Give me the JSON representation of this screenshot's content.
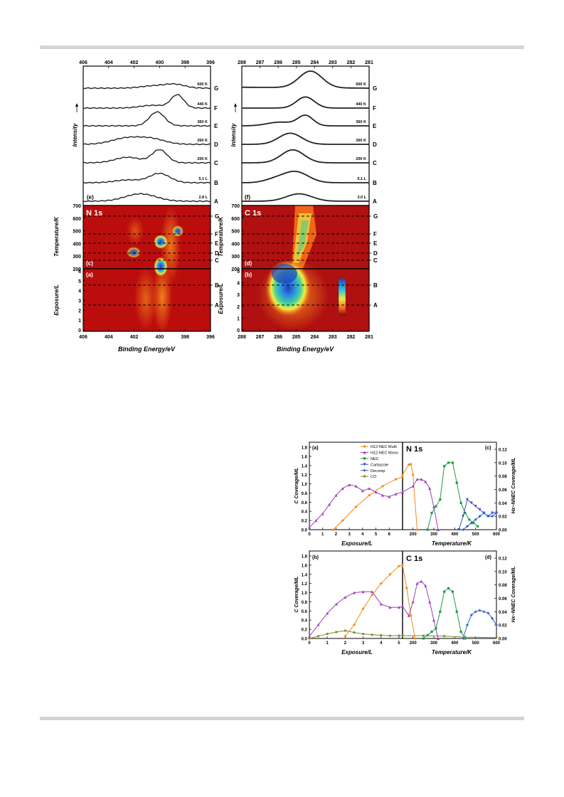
{
  "figure_top": {
    "top_axis_n": [
      "406",
      "404",
      "402",
      "400",
      "398",
      "396"
    ],
    "top_axis_c": [
      "288",
      "287",
      "286",
      "285",
      "284",
      "283",
      "282",
      "281"
    ],
    "bottom_axis_n": [
      "406",
      "404",
      "402",
      "400",
      "398",
      "396"
    ],
    "bottom_axis_c": [
      "288",
      "287",
      "286",
      "285",
      "284",
      "283",
      "282",
      "281"
    ],
    "panel_e": "(e)",
    "panel_f": "(f)",
    "panel_c": "(c)",
    "panel_a": "(a)",
    "panel_d": "(d)",
    "panel_b": "(b)",
    "intensity_label": "Intensity",
    "temperature_label": "Temperature/K",
    "exposure_label": "Exposure/L",
    "binding_label": "Binding Energy/eV",
    "n_title": "N 1s",
    "c_title": "C 1s",
    "n_spectra_labels": [
      "600 K",
      "440 K",
      "360 K",
      "260 K",
      "200 K",
      "5.1 L",
      "2.8 L"
    ],
    "c_spectra_labels": [
      "600 K",
      "440 K",
      "360 K",
      "260 K",
      "200 K",
      "5.1 L",
      "3.0 L"
    ],
    "letters": [
      "G",
      "F",
      "E",
      "D",
      "C",
      "B",
      "A"
    ],
    "temp_ticks": [
      "700",
      "600",
      "500",
      "400",
      "300",
      "200"
    ],
    "n_exp_ticks": [
      "6",
      "5",
      "4",
      "3",
      "2",
      "1",
      "0"
    ],
    "c_exp_ticks": [
      "5",
      "4",
      "3",
      "2",
      "1",
      "0"
    ]
  },
  "figure_bottom": {
    "panel_a": "(a)",
    "panel_b": "(b)",
    "panel_c": "(c)",
    "panel_d": "(d)",
    "n_title": "N 1s",
    "c_title": "C 1s",
    "left_ylabel": "C Coverage/ML",
    "right_ylabel": "Hx−NNEC Coverage/ML",
    "exposure_label": "Exposure/L",
    "temperature_label": "Temperature/K",
    "left_ticks": [
      "1.8",
      "1.6",
      "1.4",
      "1.2",
      "1.0",
      "0.8",
      "0.6",
      "0.4",
      "0.2",
      "0.0"
    ],
    "right_ticks": [
      "0.12",
      "0.10",
      "0.08",
      "0.06",
      "0.04",
      "0.02",
      "0.00"
    ],
    "exp_ticks_a": [
      "0",
      "1",
      "2",
      "3",
      "4",
      "5",
      "6"
    ],
    "exp_ticks_b": [
      "0",
      "1",
      "2",
      "3",
      "4",
      "5"
    ],
    "temp_ticks": [
      "200",
      "300",
      "400",
      "500",
      "600"
    ],
    "legend": [
      {
        "name": "H12-NEC Multi",
        "color": "#f28a1c",
        "marker": "circle"
      },
      {
        "name": "H12-NEC Mono",
        "color": "#9b3fc0",
        "marker": "triangle-up"
      },
      {
        "name": "NEC",
        "color": "#1e9a48",
        "marker": "square"
      },
      {
        "name": "Carbazole",
        "color": "#3f4fc8",
        "marker": "triangle-down"
      },
      {
        "name": "Decomp",
        "color": "#2f62c4",
        "marker": "diamond"
      },
      {
        "name": "CO",
        "color": "#7d8a2a",
        "marker": "circle"
      }
    ]
  },
  "chart_data": [
    {
      "type": "line",
      "title": "N 1s",
      "xlabel": "Exposure/L | Temperature/K",
      "ylabel": "C Coverage/ML",
      "y2label": "Hx−NNEC Coverage/ML",
      "exposure_range": [
        0,
        7
      ],
      "temperature_range": [
        150,
        600
      ],
      "ylim": [
        0,
        1.8
      ],
      "y2lim": [
        0,
        0.12
      ],
      "series": [
        {
          "name": "H12-NEC Multi",
          "axis": "left",
          "exposure": [
            1.8,
            2.5,
            3.5,
            4.5,
            5.5,
            6.5,
            7
          ],
          "exposure_values": [
            0.0,
            0.2,
            0.5,
            0.75,
            0.95,
            1.1,
            1.15
          ],
          "temperature": [
            150,
            180,
            190,
            200,
            220
          ],
          "temperature_values": [
            1.2,
            1.42,
            1.43,
            1.2,
            0.0
          ]
        },
        {
          "name": "H12-NEC Mono",
          "axis": "left",
          "exposure": [
            0,
            0.5,
            1,
            1.5,
            2,
            2.5,
            3,
            3.5,
            4,
            4.5,
            5,
            5.5,
            6,
            6.5,
            7
          ],
          "exposure_values": [
            0.05,
            0.2,
            0.35,
            0.55,
            0.75,
            0.9,
            0.98,
            0.95,
            0.85,
            0.9,
            0.82,
            0.75,
            0.72,
            0.78,
            0.82
          ],
          "temperature": [
            150,
            200,
            220,
            240,
            260,
            280,
            300,
            320
          ],
          "temperature_values": [
            0.82,
            0.95,
            1.1,
            1.1,
            1.05,
            0.9,
            0.5,
            0.0
          ]
        },
        {
          "name": "NEC",
          "axis": "right",
          "temperature": [
            270,
            290,
            310,
            330,
            350,
            370,
            390,
            410,
            430,
            450,
            470,
            490,
            510
          ],
          "temperature_values": [
            0.0,
            0.025,
            0.035,
            0.045,
            0.095,
            0.1,
            0.1,
            0.07,
            0.04,
            0.025,
            0.015,
            0.01,
            0.005
          ]
        },
        {
          "name": "Carbazole",
          "axis": "right",
          "temperature": [
            420,
            440,
            460,
            480,
            500,
            520,
            540,
            560,
            580,
            600
          ],
          "temperature_values": [
            0.0,
            0.02,
            0.045,
            0.04,
            0.035,
            0.03,
            0.025,
            0.02,
            0.025,
            0.025
          ]
        },
        {
          "name": "Decomp",
          "axis": "right",
          "temperature": [
            440,
            460,
            480,
            500,
            520,
            540,
            560,
            580,
            600
          ],
          "temperature_values": [
            0.0,
            0.005,
            0.01,
            0.015,
            0.02,
            0.025,
            0.02,
            0.02,
            0.025
          ]
        }
      ]
    },
    {
      "type": "line",
      "title": "C 1s",
      "xlabel": "Exposure/L | Temperature/K",
      "ylabel": "C Coverage/ML",
      "y2label": "Hx−NNEC Coverage/ML",
      "exposure_range": [
        0,
        5.2
      ],
      "temperature_range": [
        150,
        600
      ],
      "ylim": [
        0,
        1.8
      ],
      "y2lim": [
        0,
        0.12
      ],
      "series": [
        {
          "name": "H12-NEC Multi",
          "axis": "left",
          "exposure": [
            2,
            2.5,
            3,
            3.5,
            4,
            4.5,
            5,
            5.2
          ],
          "exposure_values": [
            0.05,
            0.3,
            0.65,
            0.95,
            1.2,
            1.4,
            1.58,
            1.6
          ],
          "temperature": [
            150,
            170,
            190,
            210
          ],
          "temperature_values": [
            1.6,
            1.1,
            0.5,
            0.0
          ]
        },
        {
          "name": "H12-NEC Mono",
          "axis": "left",
          "exposure": [
            0,
            0.5,
            1,
            1.5,
            2,
            2.5,
            3,
            3.5,
            4,
            4.5,
            5,
            5.2
          ],
          "exposure_values": [
            0.05,
            0.3,
            0.55,
            0.75,
            0.9,
            1.0,
            1.02,
            1.02,
            0.75,
            0.68,
            0.68,
            0.7
          ],
          "temperature": [
            150,
            180,
            200,
            220,
            240,
            260,
            280,
            300,
            320
          ],
          "temperature_values": [
            0.7,
            0.5,
            0.8,
            1.2,
            1.25,
            1.15,
            0.8,
            0.4,
            0.0
          ]
        },
        {
          "name": "NEC",
          "axis": "right",
          "temperature": [
            250,
            270,
            290,
            310,
            330,
            350,
            370,
            390,
            410,
            430,
            450
          ],
          "temperature_values": [
            0.0,
            0.005,
            0.01,
            0.015,
            0.04,
            0.07,
            0.075,
            0.07,
            0.04,
            0.01,
            0.0
          ]
        },
        {
          "name": "Decomp",
          "axis": "right",
          "temperature": [
            440,
            460,
            480,
            500,
            520,
            540,
            560,
            580,
            600
          ],
          "temperature_values": [
            0.0,
            0.02,
            0.035,
            0.04,
            0.042,
            0.04,
            0.038,
            0.03,
            0.02
          ]
        },
        {
          "name": "CO",
          "axis": "left",
          "exposure": [
            0,
            0.5,
            1,
            1.5,
            2,
            2.5,
            3,
            3.5,
            4,
            4.5,
            5,
            5.2
          ],
          "exposure_values": [
            0.0,
            0.05,
            0.1,
            0.14,
            0.17,
            0.13,
            0.1,
            0.08,
            0.07,
            0.06,
            0.06,
            0.06
          ],
          "temperature": [
            150,
            250,
            350,
            450,
            600
          ],
          "temperature_values": [
            0.06,
            0.06,
            0.05,
            0.03,
            0.02
          ]
        }
      ]
    }
  ]
}
